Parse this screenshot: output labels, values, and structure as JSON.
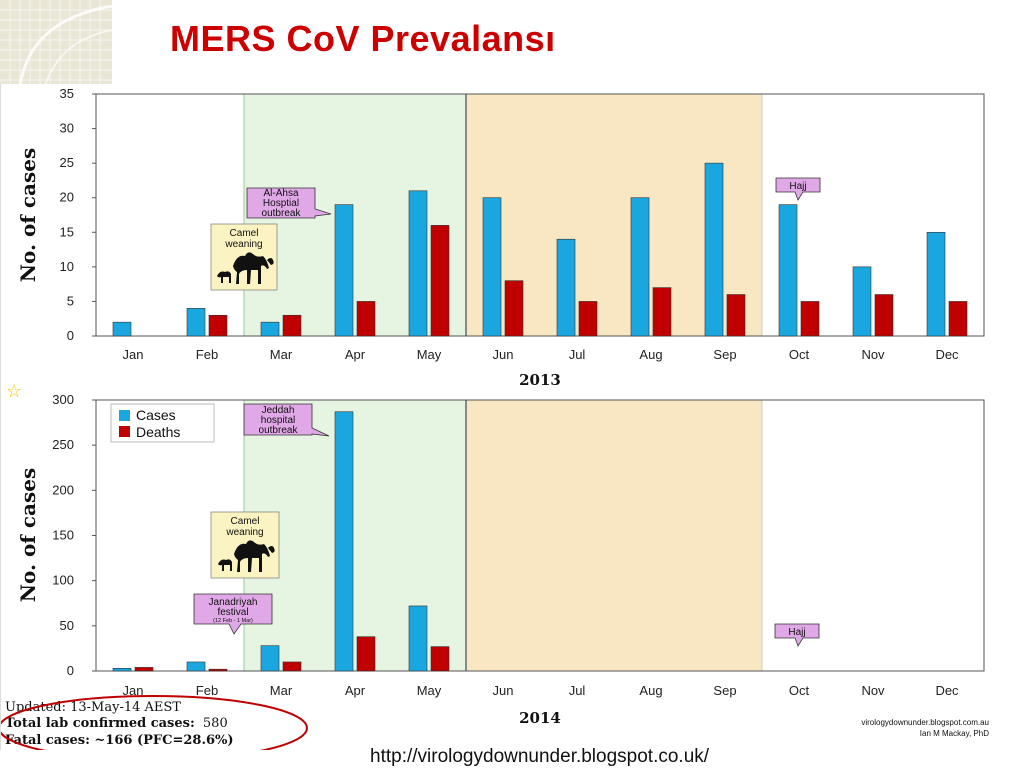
{
  "title": "MERS CoV Prevalansı",
  "source_url": "http://virologydownunder.blogspot.co.uk/",
  "colors": {
    "cases": "#1aa7e0",
    "deaths": "#c00000",
    "hajj_shade": "#f9e6c2",
    "spring_shade": "#e6f4e2",
    "callout": "#e0a8e6",
    "callout_note": "#fbf3c2"
  },
  "chart_data": [
    {
      "type": "bar",
      "year": "2013",
      "ylabel": "No. of cases",
      "ylim": [
        0,
        35
      ],
      "yticks": [
        0,
        5,
        10,
        15,
        20,
        25,
        30,
        35
      ],
      "categories": [
        "Jan",
        "Feb",
        "Mar",
        "Apr",
        "May",
        "Jun",
        "Jul",
        "Aug",
        "Sep",
        "Oct",
        "Nov",
        "Dec"
      ],
      "series": [
        {
          "name": "Cases",
          "values": [
            2,
            4,
            2,
            19,
            21,
            20,
            14,
            20,
            25,
            19,
            10,
            15
          ]
        },
        {
          "name": "Deaths",
          "values": [
            0,
            3,
            3,
            5,
            16,
            8,
            5,
            7,
            6,
            5,
            6,
            5
          ]
        }
      ],
      "annotations": {
        "outbreak": [
          "Al-Ahsa",
          "Hosptial",
          "outbreak"
        ],
        "camel": [
          "Camel",
          "weaning"
        ],
        "hajj": "Hajj"
      }
    },
    {
      "type": "bar",
      "year": "2014",
      "ylabel": "No. of cases",
      "ylim": [
        0,
        300
      ],
      "yticks": [
        0,
        50,
        100,
        150,
        200,
        250,
        300
      ],
      "categories": [
        "Jan",
        "Feb",
        "Mar",
        "Apr",
        "May",
        "Jun",
        "Jul",
        "Aug",
        "Sep",
        "Oct",
        "Nov",
        "Dec"
      ],
      "series": [
        {
          "name": "Cases",
          "values": [
            3,
            10,
            28,
            287,
            72,
            null,
            null,
            null,
            null,
            null,
            null,
            null
          ]
        },
        {
          "name": "Deaths",
          "values": [
            4,
            2,
            10,
            38,
            27,
            null,
            null,
            null,
            null,
            null,
            null,
            null
          ]
        }
      ],
      "legend": {
        "position": "top-left",
        "entries": [
          "Cases",
          "Deaths"
        ]
      },
      "annotations": {
        "outbreak": [
          "Jeddah",
          "hospital",
          "outbreak"
        ],
        "camel": [
          "Camel",
          "weaning"
        ],
        "festival": [
          "Janadriyah",
          "festival"
        ],
        "festival_note": "(12 Feb - 1 Mar)",
        "hajj": "Hajj"
      }
    }
  ],
  "footer": {
    "updated": "Updated: 13-May-14 AEST",
    "total_label": "Total lab confirmed cases:",
    "total_value": "580",
    "fatal": "Fatal cases: ~166 (PFC=28.6%)",
    "credit_site": "virologydownunder.blogspot.com.au",
    "credit_author": "Ian M Mackay, PhD"
  }
}
